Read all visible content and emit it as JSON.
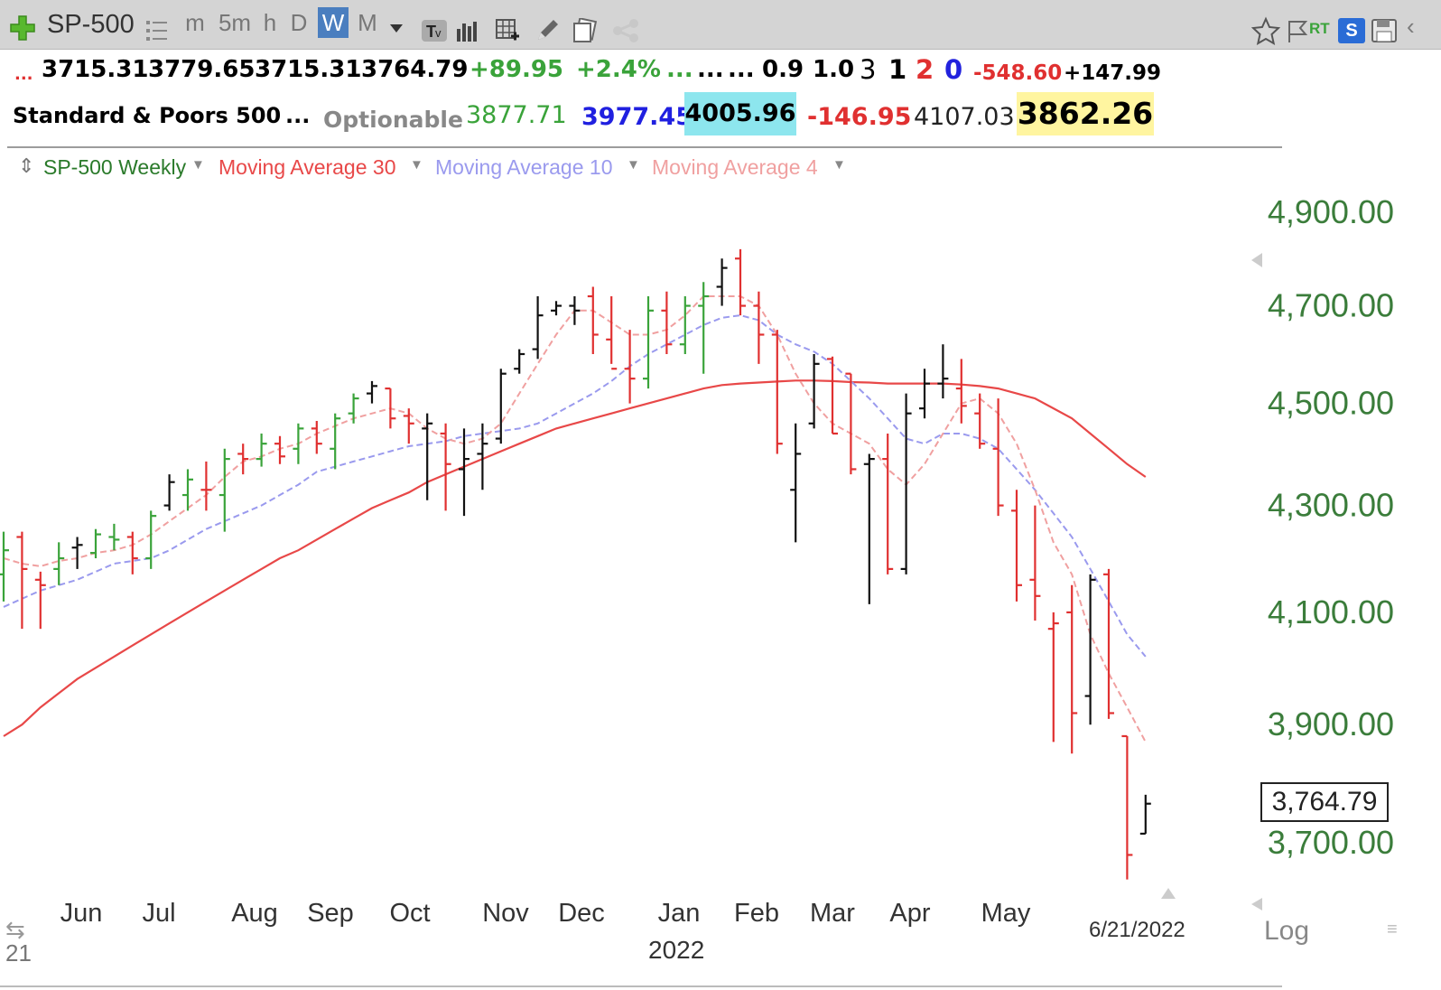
{
  "toolbar": {
    "symbol": "SP-500",
    "intervals": [
      "m",
      "5m",
      "h",
      "D",
      "W",
      "M"
    ],
    "active_interval": "W",
    "rt_label": "RT",
    "s_label": "S"
  },
  "quote_row1": {
    "prefix": "...",
    "open": "3715.31",
    "high": "3779.65",
    "low": "3715.31",
    "close": "3764.79",
    "change": "+89.95",
    "change_pct": "+2.4%",
    "e1": "...",
    "e2": "...",
    "e3": "...",
    "v1": "0.9",
    "v2": "1.0",
    "c1": "3",
    "c2": "1",
    "c3": "2",
    "c4": "0",
    "neg_val": "-548.60",
    "pos_val": "+147.99"
  },
  "quote_row2": {
    "name": "Standard & Poors 500",
    "dots": "...",
    "optionable": "Optionable",
    "v1": "3877.71",
    "v2": "3977.45",
    "v3": "4005.96",
    "v4": "-146.95",
    "v5": "4107.03",
    "v6": "3862.26"
  },
  "legend": {
    "series": "SP-500 Weekly",
    "ma30": "Moving Average 30",
    "ma10": "Moving Average 10",
    "ma4": "Moving Average 4"
  },
  "colors": {
    "up": "#3aa33a",
    "down": "#e03030",
    "neutral": "#111111",
    "ma30": "#e84848",
    "ma10": "#9a9aee",
    "ma4": "#f0a0a0",
    "axis_text": "#3b7d3b",
    "active_interval_bg": "#4a7ebf",
    "highlight_cyan": "#8de6ee",
    "highlight_yellow": "#fff5a0"
  },
  "axis": {
    "x_labels": [
      "Jun",
      "Jul",
      "Aug",
      "Sep",
      "Oct",
      "Nov",
      "Dec",
      "Jan",
      "Feb",
      "Mar",
      "Apr",
      "May"
    ],
    "year": "2022",
    "date": "6/21/2022",
    "left_label": "21",
    "log_label": "Log",
    "price_box": "3,764.79",
    "y_ticks": [
      {
        "label": "4,900.00",
        "value": 4900
      },
      {
        "label": "4,700.00",
        "value": 4700
      },
      {
        "label": "4,500.00",
        "value": 4500
      },
      {
        "label": "4,300.00",
        "value": 4300
      },
      {
        "label": "4,100.00",
        "value": 4100
      },
      {
        "label": "3,900.00",
        "value": 3900
      },
      {
        "label": "3,700.00",
        "value": 3700
      }
    ]
  },
  "chart_data": {
    "type": "ohlc",
    "log_scale": true,
    "ylim": [
      3640,
      4940
    ],
    "bars": [
      {
        "o": 4170,
        "h": 4250,
        "l": 4120,
        "c": 4215,
        "dir": "up"
      },
      {
        "o": 4240,
        "h": 4250,
        "l": 4070,
        "c": 4180,
        "dir": "down"
      },
      {
        "o": 4160,
        "h": 4175,
        "l": 4070,
        "c": 4150,
        "dir": "down"
      },
      {
        "o": 4180,
        "h": 4230,
        "l": 4150,
        "c": 4200,
        "dir": "up"
      },
      {
        "o": 4220,
        "h": 4240,
        "l": 4180,
        "c": 4225,
        "dir": "neutral"
      },
      {
        "o": 4210,
        "h": 4255,
        "l": 4200,
        "c": 4245,
        "dir": "up"
      },
      {
        "o": 4240,
        "h": 4265,
        "l": 4215,
        "c": 4235,
        "dir": "up"
      },
      {
        "o": 4240,
        "h": 4250,
        "l": 4170,
        "c": 4200,
        "dir": "down"
      },
      {
        "o": 4200,
        "h": 4290,
        "l": 4180,
        "c": 4280,
        "dir": "up"
      },
      {
        "o": 4300,
        "h": 4360,
        "l": 4290,
        "c": 4345,
        "dir": "neutral"
      },
      {
        "o": 4320,
        "h": 4370,
        "l": 4290,
        "c": 4350,
        "dir": "up"
      },
      {
        "o": 4330,
        "h": 4385,
        "l": 4290,
        "c": 4330,
        "dir": "down"
      },
      {
        "o": 4320,
        "h": 4410,
        "l": 4250,
        "c": 4390,
        "dir": "up"
      },
      {
        "o": 4400,
        "h": 4420,
        "l": 4360,
        "c": 4390,
        "dir": "down"
      },
      {
        "o": 4390,
        "h": 4440,
        "l": 4375,
        "c": 4420,
        "dir": "up"
      },
      {
        "o": 4420,
        "h": 4435,
        "l": 4380,
        "c": 4395,
        "dir": "down"
      },
      {
        "o": 4410,
        "h": 4460,
        "l": 4380,
        "c": 4450,
        "dir": "up"
      },
      {
        "o": 4450,
        "h": 4465,
        "l": 4400,
        "c": 4420,
        "dir": "down"
      },
      {
        "o": 4410,
        "h": 4480,
        "l": 4370,
        "c": 4470,
        "dir": "up"
      },
      {
        "o": 4480,
        "h": 4520,
        "l": 4460,
        "c": 4510,
        "dir": "up"
      },
      {
        "o": 4520,
        "h": 4545,
        "l": 4500,
        "c": 4535,
        "dir": "neutral"
      },
      {
        "o": 4530,
        "h": 4530,
        "l": 4450,
        "c": 4470,
        "dir": "down"
      },
      {
        "o": 4475,
        "h": 4490,
        "l": 4420,
        "c": 4460,
        "dir": "down"
      },
      {
        "o": 4450,
        "h": 4480,
        "l": 4310,
        "c": 4460,
        "dir": "neutral"
      },
      {
        "o": 4440,
        "h": 4460,
        "l": 4290,
        "c": 4380,
        "dir": "down"
      },
      {
        "o": 4370,
        "h": 4450,
        "l": 4280,
        "c": 4390,
        "dir": "neutral"
      },
      {
        "o": 4400,
        "h": 4460,
        "l": 4330,
        "c": 4420,
        "dir": "neutral"
      },
      {
        "o": 4430,
        "h": 4570,
        "l": 4420,
        "c": 4560,
        "dir": "neutral"
      },
      {
        "o": 4570,
        "h": 4610,
        "l": 4560,
        "c": 4600,
        "dir": "neutral"
      },
      {
        "o": 4610,
        "h": 4720,
        "l": 4590,
        "c": 4680,
        "dir": "neutral"
      },
      {
        "o": 4690,
        "h": 4710,
        "l": 4680,
        "c": 4700,
        "dir": "neutral"
      },
      {
        "o": 4700,
        "h": 4720,
        "l": 4660,
        "c": 4690,
        "dir": "neutral"
      },
      {
        "o": 4720,
        "h": 4740,
        "l": 4600,
        "c": 4640,
        "dir": "down"
      },
      {
        "o": 4630,
        "h": 4720,
        "l": 4580,
        "c": 4570,
        "dir": "down"
      },
      {
        "o": 4570,
        "h": 4650,
        "l": 4500,
        "c": 4550,
        "dir": "down"
      },
      {
        "o": 4550,
        "h": 4720,
        "l": 4530,
        "c": 4690,
        "dir": "up"
      },
      {
        "o": 4690,
        "h": 4730,
        "l": 4600,
        "c": 4620,
        "dir": "down"
      },
      {
        "o": 4620,
        "h": 4720,
        "l": 4600,
        "c": 4700,
        "dir": "up"
      },
      {
        "o": 4700,
        "h": 4750,
        "l": 4560,
        "c": 4720,
        "dir": "up"
      },
      {
        "o": 4740,
        "h": 4800,
        "l": 4700,
        "c": 4780,
        "dir": "neutral"
      },
      {
        "o": 4800,
        "h": 4820,
        "l": 4680,
        "c": 4700,
        "dir": "down"
      },
      {
        "o": 4700,
        "h": 4730,
        "l": 4580,
        "c": 4640,
        "dir": "down"
      },
      {
        "o": 4640,
        "h": 4650,
        "l": 4400,
        "c": 4420,
        "dir": "down"
      },
      {
        "o": 4330,
        "h": 4460,
        "l": 4230,
        "c": 4400,
        "dir": "neutral"
      },
      {
        "o": 4460,
        "h": 4600,
        "l": 4450,
        "c": 4580,
        "dir": "neutral"
      },
      {
        "o": 4590,
        "h": 4595,
        "l": 4440,
        "c": 4440,
        "dir": "down"
      },
      {
        "o": 4560,
        "h": 4560,
        "l": 4360,
        "c": 4370,
        "dir": "down"
      },
      {
        "o": 4380,
        "h": 4400,
        "l": 4115,
        "c": 4390,
        "dir": "neutral"
      },
      {
        "o": 4390,
        "h": 4440,
        "l": 4170,
        "c": 4180,
        "dir": "down"
      },
      {
        "o": 4180,
        "h": 4520,
        "l": 4170,
        "c": 4480,
        "dir": "neutral"
      },
      {
        "o": 4490,
        "h": 4570,
        "l": 4470,
        "c": 4540,
        "dir": "neutral"
      },
      {
        "o": 4540,
        "h": 4620,
        "l": 4510,
        "c": 4550,
        "dir": "neutral"
      },
      {
        "o": 4530,
        "h": 4590,
        "l": 4460,
        "c": 4495,
        "dir": "down"
      },
      {
        "o": 4480,
        "h": 4520,
        "l": 4410,
        "c": 4420,
        "dir": "down"
      },
      {
        "o": 4410,
        "h": 4510,
        "l": 4280,
        "c": 4300,
        "dir": "down"
      },
      {
        "o": 4290,
        "h": 4330,
        "l": 4120,
        "c": 4150,
        "dir": "down"
      },
      {
        "o": 4160,
        "h": 4300,
        "l": 4085,
        "c": 4130,
        "dir": "down"
      },
      {
        "o": 4070,
        "h": 4100,
        "l": 3870,
        "c": 4080,
        "dir": "down"
      },
      {
        "o": 4100,
        "h": 4150,
        "l": 3850,
        "c": 3920,
        "dir": "down"
      },
      {
        "o": 3950,
        "h": 4170,
        "l": 3900,
        "c": 4160,
        "dir": "neutral"
      },
      {
        "o": 4170,
        "h": 4180,
        "l": 3910,
        "c": 3920,
        "dir": "down"
      },
      {
        "o": 3880,
        "h": 3880,
        "l": 3640,
        "c": 3680,
        "dir": "down"
      },
      {
        "o": 3715,
        "h": 3780,
        "l": 3715,
        "c": 3765,
        "dir": "neutral"
      }
    ],
    "ma30": [
      3880,
      3900,
      3930,
      3955,
      3980,
      4000,
      4020,
      4040,
      4060,
      4080,
      4100,
      4120,
      4140,
      4160,
      4180,
      4200,
      4215,
      4235,
      4255,
      4275,
      4295,
      4310,
      4325,
      4345,
      4360,
      4375,
      4390,
      4405,
      4420,
      4435,
      4450,
      4460,
      4470,
      4480,
      4490,
      4500,
      4510,
      4520,
      4530,
      4537,
      4540,
      4542,
      4544,
      4546,
      4546,
      4545,
      4543,
      4542,
      4540,
      4540,
      4540,
      4540,
      4538,
      4535,
      4530,
      4520,
      4510,
      4490,
      4470,
      4440,
      4410,
      4380,
      4355
    ],
    "ma10": [
      4110,
      4125,
      4140,
      4150,
      4160,
      4175,
      4190,
      4195,
      4200,
      4215,
      4235,
      4255,
      4270,
      4285,
      4300,
      4320,
      4340,
      4365,
      4375,
      4385,
      4395,
      4405,
      4415,
      4420,
      4425,
      4435,
      4440,
      4445,
      4450,
      4460,
      4480,
      4500,
      4520,
      4545,
      4575,
      4600,
      4620,
      4640,
      4660,
      4675,
      4680,
      4670,
      4640,
      4620,
      4605,
      4580,
      4545,
      4510,
      4470,
      4430,
      4420,
      4440,
      4440,
      4430,
      4410,
      4370,
      4330,
      4285,
      4240,
      4180,
      4120,
      4060,
      4020
    ],
    "ma4": [
      4200,
      4190,
      4185,
      4195,
      4200,
      4210,
      4215,
      4225,
      4245,
      4270,
      4295,
      4320,
      4355,
      4385,
      4395,
      4410,
      4420,
      4440,
      4455,
      4470,
      4480,
      4490,
      4480,
      4450,
      4430,
      4420,
      4430,
      4460,
      4520,
      4580,
      4640,
      4690,
      4690,
      4665,
      4640,
      4640,
      4650,
      4680,
      4720,
      4720,
      4720,
      4700,
      4640,
      4560,
      4500,
      4460,
      4440,
      4420,
      4370,
      4340,
      4380,
      4440,
      4500,
      4510,
      4480,
      4420,
      4330,
      4230,
      4170,
      4060,
      3990,
      3930,
      3870
    ]
  }
}
